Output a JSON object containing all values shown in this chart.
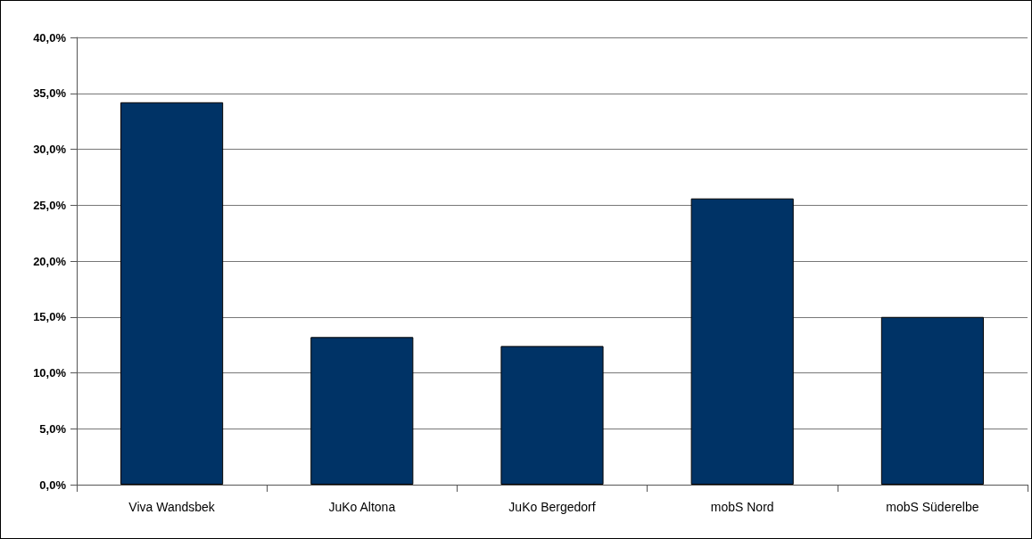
{
  "chart_data": {
    "type": "bar",
    "categories": [
      "Viva Wandsbek",
      "JuKo Altona",
      "JuKo Bergedorf",
      "mobS Nord",
      "mobS Süderelbe"
    ],
    "values": [
      34.2,
      13.2,
      12.4,
      25.6,
      15.0
    ],
    "color": "#003366",
    "ylim": [
      0,
      40
    ],
    "yticks": [
      {
        "value": 0,
        "label": "0,0%"
      },
      {
        "value": 5,
        "label": "5,0%"
      },
      {
        "value": 10,
        "label": "10,0%"
      },
      {
        "value": 15,
        "label": "15,0%"
      },
      {
        "value": 20,
        "label": "20,0%"
      },
      {
        "value": 25,
        "label": "25,0%"
      },
      {
        "value": 30,
        "label": "30,0%"
      },
      {
        "value": 35,
        "label": "35,0%"
      },
      {
        "value": 40,
        "label": "40,0%"
      }
    ],
    "grid": "y"
  }
}
